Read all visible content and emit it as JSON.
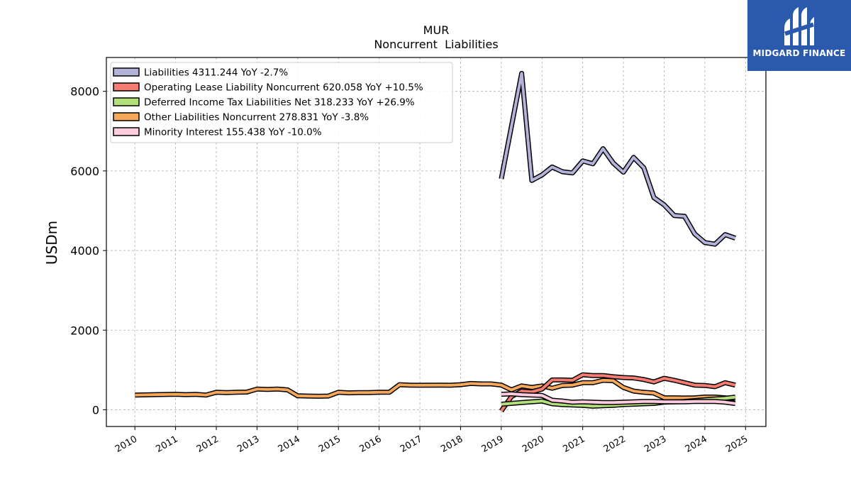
{
  "logo": {
    "text": "MIDGARD FINANCE",
    "background": "#2b5aac"
  },
  "chart_data": {
    "type": "line",
    "title": "MUR",
    "subtitle": "Noncurrent  Liabilities",
    "ylabel": "USDm",
    "xlabel": "",
    "xlim": [
      2009.3,
      2025.5
    ],
    "ylim": [
      -420,
      8850
    ],
    "yticks": [
      0,
      2000,
      4000,
      6000,
      8000
    ],
    "xticks": [
      2010,
      2011,
      2012,
      2013,
      2014,
      2015,
      2016,
      2017,
      2018,
      2019,
      2020,
      2021,
      2022,
      2023,
      2024,
      2025
    ],
    "grid": true,
    "legend_position": "top-left",
    "series": [
      {
        "name": "Liabilities",
        "legend_label": "Liabilities  4311.244 YoY -2.7%",
        "color": "#b3b3d9",
        "x": [
          2019.0,
          2019.5,
          2019.75,
          2020.0,
          2020.25,
          2020.5,
          2020.75,
          2021.0,
          2021.25,
          2021.5,
          2021.75,
          2022.0,
          2022.25,
          2022.5,
          2022.75,
          2023.0,
          2023.25,
          2023.5,
          2023.75,
          2024.0,
          2024.25,
          2024.5,
          2024.75
        ],
        "y": [
          5800,
          8450,
          5760,
          5900,
          6100,
          5980,
          5950,
          6250,
          6180,
          6560,
          6200,
          5970,
          6340,
          6080,
          5330,
          5150,
          4880,
          4860,
          4420,
          4200,
          4160,
          4400,
          4311
        ]
      },
      {
        "name": "Operating Lease Liability Noncurrent",
        "legend_label": "Operating Lease Liability Noncurrent  620.058 YoY +10.5%",
        "color": "#f47c72",
        "x": [
          2019.0,
          2019.25,
          2019.5,
          2019.75,
          2020.0,
          2020.25,
          2020.5,
          2020.75,
          2021.0,
          2021.25,
          2021.5,
          2021.75,
          2022.0,
          2022.25,
          2022.5,
          2022.75,
          2023.0,
          2023.25,
          2023.5,
          2023.75,
          2024.0,
          2024.25,
          2024.5,
          2024.75
        ],
        "y": [
          -30,
          330,
          470,
          450,
          520,
          750,
          750,
          740,
          880,
          860,
          860,
          830,
          810,
          800,
          760,
          700,
          790,
          740,
          680,
          620,
          610,
          580,
          680,
          620
        ]
      },
      {
        "name": "Deferred Income Tax Liabilities Net",
        "legend_label": "Deferred Income Tax Liabilities Net  318.233 YoY +26.9%",
        "color": "#b4e07a",
        "x": [
          2019.0,
          2019.5,
          2020.0,
          2020.25,
          2020.5,
          2020.75,
          2021.0,
          2021.25,
          2021.5,
          2021.75,
          2022.0,
          2022.25,
          2022.5,
          2022.75,
          2023.0,
          2023.25,
          2023.5,
          2023.75,
          2024.0,
          2024.25,
          2024.5,
          2024.75
        ],
        "y": [
          140,
          180,
          220,
          150,
          130,
          120,
          110,
          90,
          100,
          110,
          130,
          140,
          150,
          160,
          190,
          200,
          210,
          230,
          250,
          270,
          290,
          318
        ]
      },
      {
        "name": "Other Liabilities Noncurrent",
        "legend_label": "Other Liabilities Noncurrent  278.831 YoY -3.8%",
        "color": "#f5a85a",
        "x": [
          2010.0,
          2010.5,
          2011.0,
          2011.25,
          2011.5,
          2011.75,
          2012.0,
          2012.25,
          2012.5,
          2012.75,
          2013.0,
          2013.25,
          2013.5,
          2013.75,
          2014.0,
          2014.25,
          2014.5,
          2014.75,
          2015.0,
          2015.25,
          2015.5,
          2015.75,
          2016.0,
          2016.25,
          2016.5,
          2016.75,
          2017.0,
          2017.5,
          2017.75,
          2018.0,
          2018.25,
          2018.5,
          2018.75,
          2019.0,
          2019.25,
          2019.5,
          2019.75,
          2020.0,
          2020.25,
          2020.5,
          2020.75,
          2021.0,
          2021.25,
          2021.5,
          2021.75,
          2022.0,
          2022.25,
          2022.5,
          2022.75,
          2023.0,
          2023.25,
          2023.5,
          2023.75,
          2024.0,
          2024.25,
          2024.5,
          2024.75
        ],
        "y": [
          370,
          380,
          390,
          380,
          385,
          370,
          440,
          430,
          440,
          445,
          520,
          510,
          520,
          500,
          350,
          345,
          340,
          345,
          440,
          425,
          430,
          430,
          440,
          440,
          630,
          620,
          615,
          620,
          615,
          630,
          660,
          650,
          650,
          620,
          500,
          600,
          560,
          600,
          540,
          610,
          620,
          680,
          680,
          740,
          730,
          560,
          470,
          440,
          420,
          300,
          300,
          295,
          300,
          320,
          320,
          300,
          279
        ]
      },
      {
        "name": "Minority Interest",
        "legend_label": "Minority Interest  155.438 YoY -10.0%",
        "color": "#ffcce0",
        "x": [
          2019.0,
          2019.25,
          2019.5,
          2019.75,
          2020.0,
          2020.25,
          2020.5,
          2020.75,
          2021.0,
          2021.25,
          2021.5,
          2021.75,
          2022.0,
          2022.25,
          2022.5,
          2022.75,
          2023.0,
          2023.25,
          2023.5,
          2023.75,
          2024.0,
          2024.25,
          2024.5,
          2024.75
        ],
        "y": [
          390,
          400,
          380,
          370,
          360,
          240,
          220,
          190,
          200,
          190,
          180,
          180,
          190,
          200,
          210,
          210,
          200,
          200,
          200,
          210,
          210,
          210,
          190,
          155
        ]
      }
    ]
  }
}
